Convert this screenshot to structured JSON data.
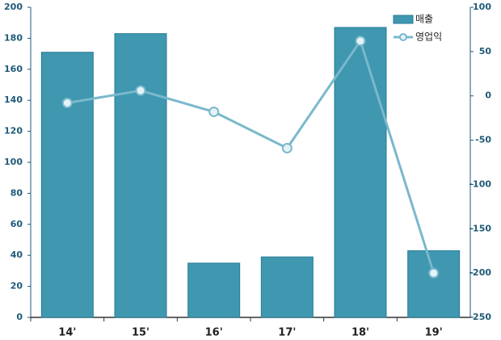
{
  "chart_data": {
    "type": "bar-line",
    "categories": [
      "14'",
      "15'",
      "16'",
      "17'",
      "18'",
      "19'"
    ],
    "series": [
      {
        "name": "매출",
        "type": "bar",
        "color": "#3f97b0",
        "values": [
          171,
          183,
          35,
          39,
          187,
          43
        ]
      },
      {
        "name": "영업익",
        "type": "line",
        "axis": "y2",
        "color": "#7ab8cc",
        "values": [
          -8,
          6,
          -18,
          -59,
          62,
          -200
        ]
      }
    ],
    "ylim": [
      0,
      200
    ],
    "yticks": [
      0,
      20,
      40,
      60,
      80,
      100,
      120,
      140,
      160,
      180,
      200
    ],
    "y2lim": [
      -250,
      100
    ],
    "y2ticks": [
      -250,
      -200,
      -150,
      -100,
      -50,
      0,
      50,
      100
    ],
    "legend": "top-right"
  }
}
